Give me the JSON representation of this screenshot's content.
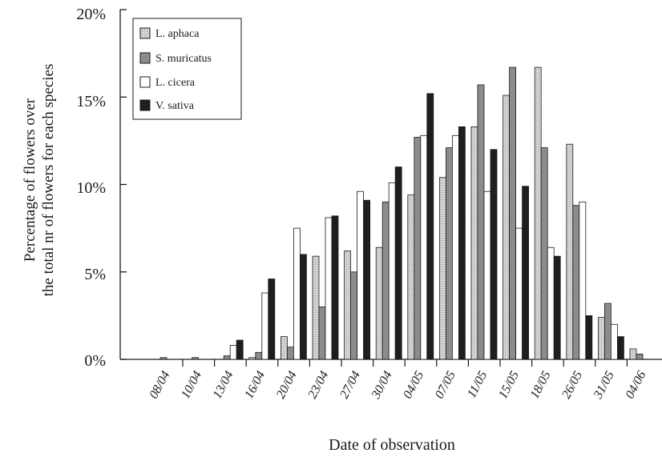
{
  "chart_data": {
    "type": "bar",
    "xlabel": "Date of observation",
    "ylabel_lines": [
      "Percentage of flowers over",
      "the total nr of flowers for each species"
    ],
    "ylim": [
      0,
      20
    ],
    "yticks": [
      "0%",
      "5%",
      "10%",
      "15%",
      "20%"
    ],
    "grid": false,
    "legend_position": "top-left",
    "categories": [
      "08/04",
      "10/04",
      "13/04",
      "16/04",
      "20/04",
      "23/04",
      "27/04",
      "30/04",
      "04/05",
      "07/05",
      "11/05",
      "15/05",
      "18/05",
      "26/05",
      "31/05",
      "04/06"
    ],
    "series": [
      {
        "name": "L. aphaca",
        "color": "#c9c9c9",
        "pattern": "stipple",
        "values": [
          0,
          0,
          0,
          0.1,
          1.3,
          5.9,
          6.2,
          6.4,
          9.4,
          10.4,
          13.3,
          15.1,
          16.7,
          12.3,
          2.4,
          0.6
        ]
      },
      {
        "name": "S. muricatus",
        "color": "#8c8c8c",
        "pattern": "solid",
        "values": [
          0.1,
          0.1,
          0.2,
          0.4,
          0.7,
          3.0,
          5.0,
          9.0,
          12.7,
          12.1,
          15.7,
          16.7,
          12.1,
          8.8,
          3.2,
          0.3
        ]
      },
      {
        "name": "L. cicera",
        "color": "#ffffff",
        "pattern": "solid",
        "values": [
          0,
          0,
          0.8,
          3.8,
          7.5,
          8.1,
          9.6,
          10.1,
          12.8,
          12.8,
          9.6,
          7.5,
          6.4,
          9.0,
          2.0,
          0
        ]
      },
      {
        "name": "V. sativa",
        "color": "#1e1e1e",
        "pattern": "solid",
        "values": [
          0,
          0,
          1.1,
          4.6,
          6.0,
          8.2,
          9.1,
          11.0,
          15.2,
          13.3,
          12.0,
          9.9,
          5.9,
          2.5,
          1.3,
          0
        ]
      }
    ]
  }
}
